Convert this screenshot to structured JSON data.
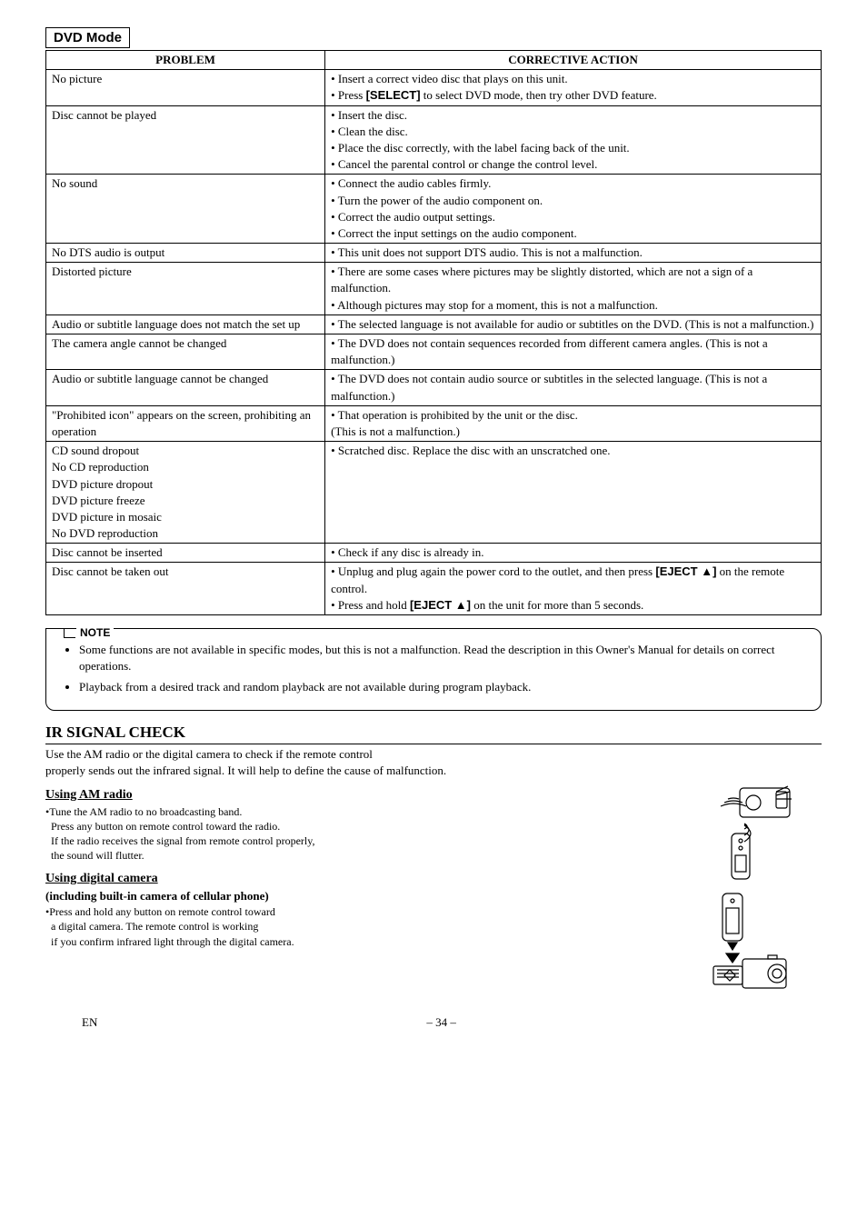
{
  "mode_title": "DVD Mode",
  "table": {
    "headers": {
      "problem": "PROBLEM",
      "action": "CORRECTIVE ACTION"
    },
    "rows": [
      {
        "problem": "No picture",
        "action": "• Insert a correct video disc that plays on this unit.\n• Press [SELECT] to select DVD mode, then try other DVD feature."
      },
      {
        "problem": "Disc cannot be played",
        "action": "• Insert the disc.\n• Clean the disc.\n• Place the disc correctly, with the label facing back of the unit.\n• Cancel the parental control or change the control level."
      },
      {
        "problem": "No sound",
        "action": "• Connect the audio cables firmly.\n• Turn the power of the audio component on.\n• Correct the audio output settings.\n• Correct the input settings on the audio component."
      },
      {
        "problem": "No DTS audio is output",
        "action": "• This unit does not support DTS audio. This is not a malfunction."
      },
      {
        "problem": "Distorted picture",
        "action": "• There are some cases where pictures may be slightly distorted, which are not a sign of a malfunction.\n• Although pictures may stop for a moment, this is not a malfunction."
      },
      {
        "problem": "Audio or subtitle language does not match the set up",
        "action": "• The selected language is not available for audio or subtitles on the DVD. (This is not a malfunction.)"
      },
      {
        "problem": "The camera angle cannot be changed",
        "action": "• The DVD does not contain sequences recorded from different camera angles. (This is not a malfunction.)"
      },
      {
        "problem": "Audio or subtitle language cannot be changed",
        "action": "• The DVD does not contain audio source or subtitles in the selected language. (This is not a malfunction.)"
      },
      {
        "problem": "\"Prohibited icon\" appears on the screen, prohibiting an operation",
        "action": "• That operation is prohibited by the unit or the disc.\n(This is not a malfunction.)"
      },
      {
        "problem": "CD sound dropout\nNo CD reproduction\nDVD picture dropout\nDVD picture freeze\nDVD picture in mosaic\nNo DVD reproduction",
        "action": "• Scratched disc. Replace the disc with an unscratched one."
      },
      {
        "problem": "Disc cannot be inserted",
        "action": "• Check if any disc is already in."
      },
      {
        "problem": "Disc cannot be taken out",
        "action": "• Unplug and plug again the power cord to the outlet, and then press [EJECT ▲] on the remote control.\n• Press and hold [EJECT ▲] on the unit for more than 5 seconds."
      }
    ]
  },
  "note": {
    "label": "NOTE",
    "items": [
      "Some functions are not available in specific modes, but this is not a malfunction. Read the description in this Owner's Manual for details on correct operations.",
      "Playback from a desired track and random playback are not available during program playback."
    ]
  },
  "ir": {
    "title": "IR SIGNAL CHECK",
    "intro1": "Use the AM radio or the digital camera to check if the remote control",
    "intro2": "properly sends out the infrared signal. It will help to define the cause of malfunction.",
    "am_head": "Using AM radio",
    "am_l1": "•Tune the AM radio to no broadcasting band.",
    "am_l2": "Press any button on remote control toward the radio.",
    "am_l3": "If the radio receives the signal from remote control properly,",
    "am_l4": "the sound will flutter.",
    "cam_head": "Using digital camera",
    "cam_sub": "(including built-in camera of cellular phone)",
    "cam_l1": "•Press and hold any button on remote control toward",
    "cam_l2": "a digital camera. The remote control is working",
    "cam_l3": "if you confirm infrared light through the digital camera."
  },
  "footer": {
    "left": "EN",
    "right": "– 34 –"
  }
}
